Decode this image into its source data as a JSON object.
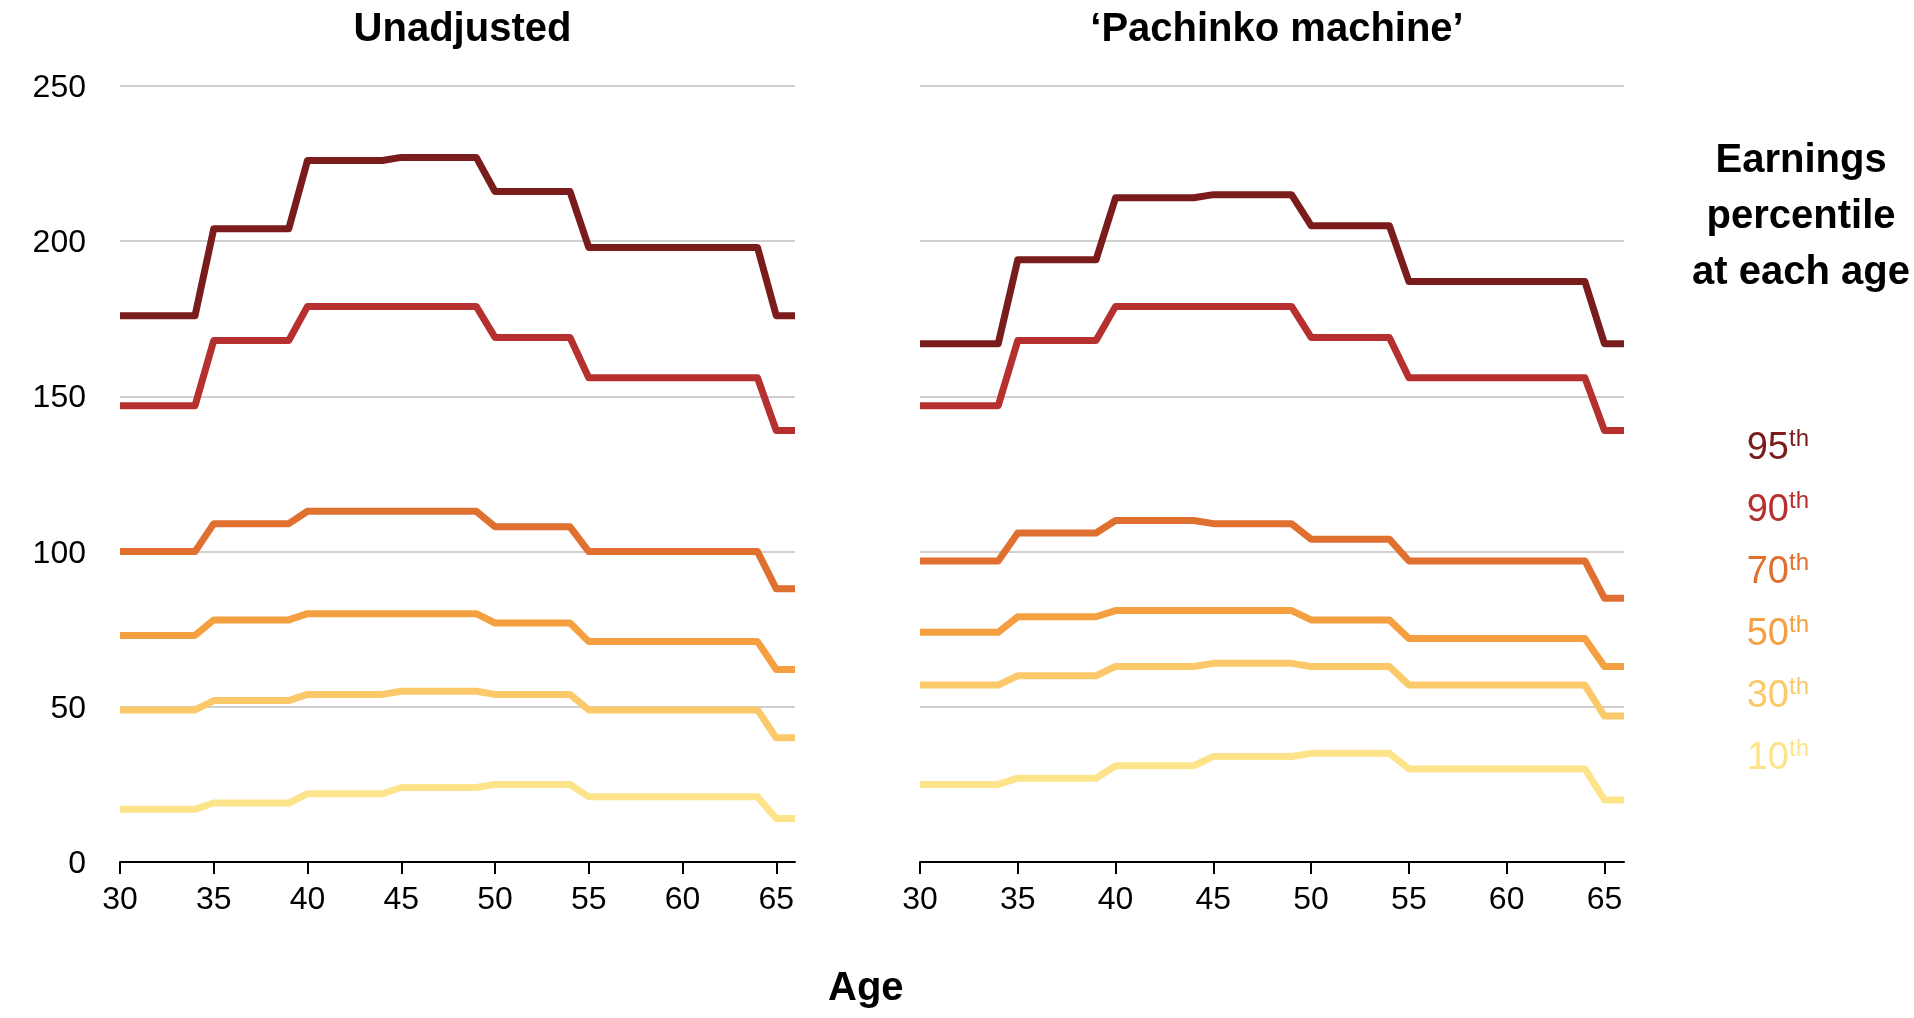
{
  "chart_data": [
    {
      "type": "line",
      "title": "Unadjusted",
      "xlabel": "Age",
      "x": [
        30,
        34,
        35,
        39,
        40,
        44,
        45,
        49,
        50,
        54,
        55,
        64,
        65,
        66
      ],
      "xlim": [
        30,
        66
      ],
      "xticks": [
        30,
        35,
        40,
        45,
        50,
        55,
        60,
        65
      ],
      "ylim": [
        0,
        250
      ],
      "yticks": [
        0,
        50,
        100,
        150,
        200,
        250
      ],
      "grid": "y",
      "legend": false,
      "marker": "none",
      "line_style": "solid",
      "series": [
        {
          "color": "#7b1c1c",
          "values": [
            176,
            176,
            204,
            204,
            226,
            226,
            227,
            227,
            216,
            216,
            198,
            198,
            176,
            176
          ]
        },
        {
          "color": "#b5302f",
          "values": [
            147,
            147,
            168,
            168,
            179,
            179,
            179,
            179,
            169,
            169,
            156,
            156,
            139,
            139
          ]
        },
        {
          "color": "#e07030",
          "values": [
            100,
            100,
            109,
            109,
            113,
            113,
            113,
            113,
            108,
            108,
            100,
            100,
            88,
            88
          ]
        },
        {
          "color": "#f5a040",
          "values": [
            73,
            73,
            78,
            78,
            80,
            80,
            80,
            80,
            77,
            77,
            71,
            71,
            62,
            62
          ]
        },
        {
          "color": "#fcc96a",
          "values": [
            49,
            49,
            52,
            52,
            54,
            54,
            55,
            55,
            54,
            54,
            49,
            49,
            40,
            40
          ]
        },
        {
          "color": "#fde38a",
          "values": [
            17,
            17,
            19,
            19,
            22,
            22,
            24,
            24,
            25,
            25,
            21,
            21,
            14,
            14
          ]
        }
      ]
    },
    {
      "type": "line",
      "title": "‘Pachinko machine’",
      "legend_title": "Earnings percentile at each age",
      "x": [
        30,
        34,
        35,
        39,
        40,
        44,
        45,
        49,
        50,
        54,
        55,
        64,
        65,
        66
      ],
      "xlim": [
        30,
        66
      ],
      "xticks": [
        30,
        35,
        40,
        45,
        50,
        55,
        60,
        65
      ],
      "ylim": [
        0,
        250
      ],
      "yticks": [
        0,
        50,
        100,
        150,
        200,
        250
      ],
      "tick_labels": "x",
      "grid": "y",
      "legend": "right",
      "marker": "none",
      "line_style": "solid",
      "series": [
        {
          "name": "95$^{th}$",
          "color": "#7b1c1c",
          "values": [
            167,
            167,
            194,
            194,
            214,
            214,
            215,
            215,
            205,
            205,
            187,
            187,
            167,
            167
          ]
        },
        {
          "name": "90$^{th}$",
          "color": "#b5302f",
          "values": [
            147,
            147,
            168,
            168,
            179,
            179,
            179,
            179,
            169,
            169,
            156,
            156,
            139,
            139
          ]
        },
        {
          "name": "70$^{th}$",
          "color": "#e07030",
          "values": [
            97,
            97,
            106,
            106,
            110,
            110,
            109,
            109,
            104,
            104,
            97,
            97,
            85,
            85
          ]
        },
        {
          "name": "50$^{th}$",
          "color": "#f5a040",
          "values": [
            74,
            74,
            79,
            79,
            81,
            81,
            81,
            81,
            78,
            78,
            72,
            72,
            63,
            63
          ]
        },
        {
          "name": "30$^{th}$",
          "color": "#fcc96a",
          "values": [
            57,
            57,
            60,
            60,
            63,
            63,
            64,
            64,
            63,
            63,
            57,
            57,
            47,
            47
          ]
        },
        {
          "name": "10$^{th}$",
          "color": "#fde38a",
          "values": [
            25,
            25,
            27,
            27,
            31,
            31,
            34,
            34,
            35,
            35,
            30,
            30,
            20,
            20
          ]
        }
      ]
    }
  ]
}
